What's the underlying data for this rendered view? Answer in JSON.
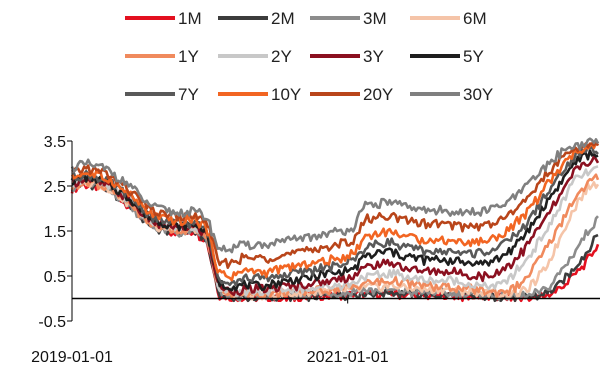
{
  "chart_data": {
    "type": "line",
    "title": "",
    "xlabel": "",
    "ylabel": "",
    "ylim": [
      -0.5,
      3.5
    ],
    "yticks": [
      "3.5",
      "2.5",
      "1.5",
      "0.5",
      "-0.5"
    ],
    "ytick_values": [
      3.5,
      2.5,
      1.5,
      0.5,
      -0.5
    ],
    "xlim": [
      "2019-01-01",
      "2022-11-01"
    ],
    "xticks": [
      "2019-01-01",
      "2021-01-01"
    ],
    "grid": false,
    "legend_position": "top",
    "series": [
      {
        "name": "1M",
        "color": "#e3101f",
        "values": [
          2.45,
          2.55,
          2.5,
          2.4,
          2.2,
          2.0,
          1.7,
          1.55,
          1.5,
          1.45,
          1.5,
          1.3,
          0.1,
          0.0,
          0.0,
          0.0,
          0.0,
          0.0,
          0.02,
          0.02,
          0.03,
          0.05,
          0.05,
          0.08,
          0.1,
          0.1,
          0.12,
          0.08,
          0.08,
          0.08,
          0.06,
          0.07,
          0.05,
          0.04,
          0.03,
          0.02,
          0.0,
          0.0,
          0.02,
          0.1,
          0.25,
          0.5,
          0.8,
          1.2
        ]
      },
      {
        "name": "2M",
        "color": "#3c3c3c",
        "values": [
          2.45,
          2.55,
          2.5,
          2.4,
          2.2,
          2.0,
          1.7,
          1.55,
          1.5,
          1.45,
          1.5,
          1.32,
          0.12,
          0.03,
          0.03,
          0.03,
          0.03,
          0.04,
          0.05,
          0.05,
          0.06,
          0.08,
          0.08,
          0.1,
          0.12,
          0.12,
          0.14,
          0.1,
          0.1,
          0.1,
          0.08,
          0.08,
          0.06,
          0.05,
          0.04,
          0.03,
          0.02,
          0.02,
          0.05,
          0.15,
          0.35,
          0.65,
          1.0,
          1.45
        ]
      },
      {
        "name": "3M",
        "color": "#8c8c8c",
        "values": [
          2.45,
          2.55,
          2.5,
          2.4,
          2.2,
          2.0,
          1.7,
          1.55,
          1.5,
          1.45,
          1.5,
          1.35,
          0.15,
          0.05,
          0.05,
          0.05,
          0.05,
          0.06,
          0.08,
          0.08,
          0.1,
          0.12,
          0.12,
          0.15,
          0.18,
          0.18,
          0.2,
          0.15,
          0.14,
          0.13,
          0.12,
          0.12,
          0.1,
          0.08,
          0.06,
          0.05,
          0.05,
          0.05,
          0.1,
          0.25,
          0.6,
          1.0,
          1.4,
          1.8
        ]
      },
      {
        "name": "6M",
        "color": "#f5c4a8",
        "values": [
          2.5,
          2.6,
          2.55,
          2.45,
          2.25,
          2.05,
          1.75,
          1.6,
          1.55,
          1.5,
          1.55,
          1.4,
          0.2,
          0.08,
          0.08,
          0.08,
          0.08,
          0.1,
          0.12,
          0.12,
          0.14,
          0.16,
          0.18,
          0.2,
          0.25,
          0.25,
          0.3,
          0.25,
          0.22,
          0.2,
          0.2,
          0.2,
          0.18,
          0.15,
          0.12,
          0.1,
          0.1,
          0.15,
          0.4,
          0.8,
          1.4,
          2.0,
          2.4,
          2.6
        ]
      },
      {
        "name": "1Y",
        "color": "#f08a5d",
        "values": [
          2.5,
          2.6,
          2.55,
          2.45,
          2.25,
          2.05,
          1.75,
          1.6,
          1.55,
          1.5,
          1.55,
          1.4,
          0.22,
          0.1,
          0.12,
          0.1,
          0.1,
          0.12,
          0.14,
          0.15,
          0.18,
          0.2,
          0.22,
          0.25,
          0.35,
          0.35,
          0.4,
          0.35,
          0.3,
          0.28,
          0.25,
          0.25,
          0.22,
          0.2,
          0.15,
          0.15,
          0.2,
          0.4,
          0.8,
          1.2,
          1.7,
          2.2,
          2.5,
          2.7
        ]
      },
      {
        "name": "2Y",
        "color": "#c8c8c8",
        "values": [
          2.55,
          2.65,
          2.6,
          2.5,
          2.3,
          2.1,
          1.8,
          1.65,
          1.6,
          1.55,
          1.6,
          1.45,
          0.25,
          0.12,
          0.15,
          0.15,
          0.15,
          0.18,
          0.2,
          0.22,
          0.25,
          0.28,
          0.3,
          0.35,
          0.5,
          0.5,
          0.55,
          0.5,
          0.45,
          0.4,
          0.4,
          0.4,
          0.35,
          0.3,
          0.25,
          0.3,
          0.5,
          0.8,
          1.2,
          1.6,
          2.1,
          2.6,
          2.8,
          2.9
        ]
      },
      {
        "name": "3Y",
        "color": "#8b1020",
        "values": [
          2.55,
          2.65,
          2.6,
          2.5,
          2.3,
          2.1,
          1.8,
          1.65,
          1.6,
          1.55,
          1.6,
          1.45,
          0.28,
          0.15,
          0.2,
          0.2,
          0.2,
          0.25,
          0.28,
          0.3,
          0.35,
          0.4,
          0.45,
          0.5,
          0.7,
          0.75,
          0.8,
          0.7,
          0.65,
          0.6,
          0.6,
          0.6,
          0.55,
          0.5,
          0.5,
          0.6,
          0.8,
          1.1,
          1.5,
          1.9,
          2.3,
          2.8,
          3.0,
          3.1
        ]
      },
      {
        "name": "5Y",
        "color": "#1e1e1e",
        "values": [
          2.6,
          2.7,
          2.65,
          2.55,
          2.35,
          2.15,
          1.85,
          1.7,
          1.65,
          1.6,
          1.65,
          1.5,
          0.35,
          0.25,
          0.3,
          0.3,
          0.3,
          0.35,
          0.4,
          0.45,
          0.5,
          0.55,
          0.6,
          0.65,
          0.95,
          1.0,
          1.05,
          0.95,
          0.9,
          0.85,
          0.85,
          0.85,
          0.8,
          0.8,
          0.8,
          0.9,
          1.1,
          1.4,
          1.8,
          2.2,
          2.6,
          3.0,
          3.2,
          3.2
        ]
      },
      {
        "name": "7Y",
        "color": "#595959",
        "values": [
          2.65,
          2.75,
          2.7,
          2.6,
          2.4,
          2.2,
          1.9,
          1.75,
          1.7,
          1.65,
          1.7,
          1.55,
          0.45,
          0.35,
          0.45,
          0.45,
          0.45,
          0.5,
          0.55,
          0.6,
          0.65,
          0.7,
          0.75,
          0.85,
          1.15,
          1.2,
          1.25,
          1.15,
          1.1,
          1.05,
          1.05,
          1.05,
          1.0,
          1.0,
          1.05,
          1.15,
          1.35,
          1.6,
          2.0,
          2.4,
          2.8,
          3.1,
          3.3,
          3.3
        ]
      },
      {
        "name": "10Y",
        "color": "#f26522",
        "values": [
          2.7,
          2.8,
          2.75,
          2.65,
          2.45,
          2.25,
          1.95,
          1.8,
          1.75,
          1.7,
          1.75,
          1.6,
          0.55,
          0.5,
          0.6,
          0.6,
          0.6,
          0.65,
          0.7,
          0.75,
          0.8,
          0.85,
          0.9,
          1.0,
          1.4,
          1.45,
          1.5,
          1.4,
          1.35,
          1.3,
          1.3,
          1.3,
          1.25,
          1.25,
          1.3,
          1.4,
          1.6,
          1.85,
          2.2,
          2.6,
          2.9,
          3.2,
          3.3,
          3.4
        ]
      },
      {
        "name": "20Y",
        "color": "#b9451a",
        "values": [
          2.8,
          2.9,
          2.85,
          2.75,
          2.55,
          2.35,
          2.05,
          1.9,
          1.85,
          1.8,
          1.85,
          1.7,
          0.8,
          0.8,
          0.9,
          0.9,
          0.9,
          0.95,
          1.0,
          1.05,
          1.1,
          1.15,
          1.2,
          1.3,
          1.75,
          1.8,
          1.85,
          1.75,
          1.7,
          1.65,
          1.65,
          1.65,
          1.6,
          1.6,
          1.65,
          1.75,
          1.9,
          2.15,
          2.5,
          2.8,
          3.1,
          3.3,
          3.4,
          3.5
        ]
      },
      {
        "name": "30Y",
        "color": "#7f7f7f",
        "values": [
          2.9,
          3.0,
          2.95,
          2.85,
          2.65,
          2.45,
          2.15,
          2.0,
          1.95,
          1.9,
          1.95,
          1.8,
          1.1,
          1.1,
          1.2,
          1.2,
          1.2,
          1.25,
          1.3,
          1.35,
          1.4,
          1.45,
          1.5,
          1.6,
          2.05,
          2.1,
          2.15,
          2.05,
          2.0,
          1.95,
          1.95,
          1.95,
          1.9,
          1.9,
          1.95,
          2.05,
          2.2,
          2.45,
          2.75,
          3.0,
          3.25,
          3.4,
          3.45,
          3.5
        ]
      }
    ]
  }
}
